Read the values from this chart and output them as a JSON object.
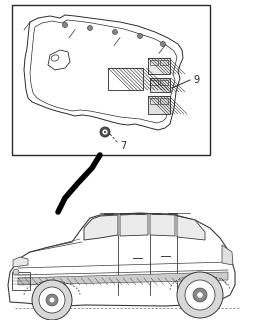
{
  "bg_color": "#ffffff",
  "label_9": "9",
  "label_7": "7",
  "fig_width": 2.54,
  "fig_height": 3.2,
  "dpi": 100,
  "line_color": "#2a2a2a",
  "car_line_color": "#3a3a3a"
}
